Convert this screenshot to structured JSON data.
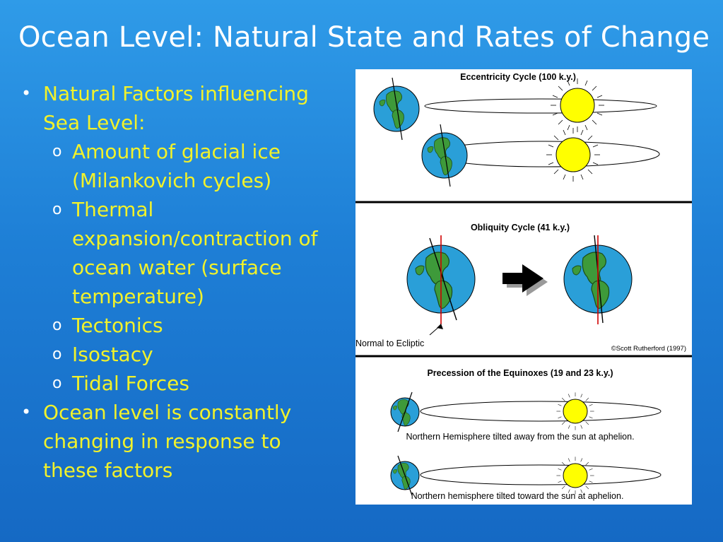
{
  "slide": {
    "title": "Ocean Level: Natural State and Rates of Change",
    "bullets": [
      {
        "text": "Natural Factors influencing Sea Level:",
        "sub": [
          " Amount of glacial ice (Milankovich cycles)",
          "Thermal expansion/contraction of ocean water (surface temperature)",
          "Tectonics",
          "Isostacy",
          "Tidal Forces"
        ]
      },
      {
        "text": "Ocean level is constantly changing in response to these factors"
      }
    ],
    "bullet_marker": "•",
    "sub_marker": "o"
  },
  "figure": {
    "eccentricity_title": "Eccentricity Cycle (100 k.y.)",
    "obliquity_title": "Obliquity Cycle (41 k.y.)",
    "normal_label": "Normal to Ecliptic",
    "copyright": "©Scott Rutherford (1997)",
    "precession_title": "Precession of the Equinoxes (19 and 23 k.y.)",
    "precession_caption_1": "Northern Hemisphere tilted away from the sun at aphelion.",
    "precession_caption_2": "Northern hemisphere tilted toward the sun at aphelion."
  },
  "colors": {
    "title_text": "#ffffff",
    "bullet_text": "#f2f22a",
    "ocean": "#2a9fd8",
    "land": "#3e9a3a",
    "sun": "#ffff00",
    "axis_red": "#d00000"
  }
}
